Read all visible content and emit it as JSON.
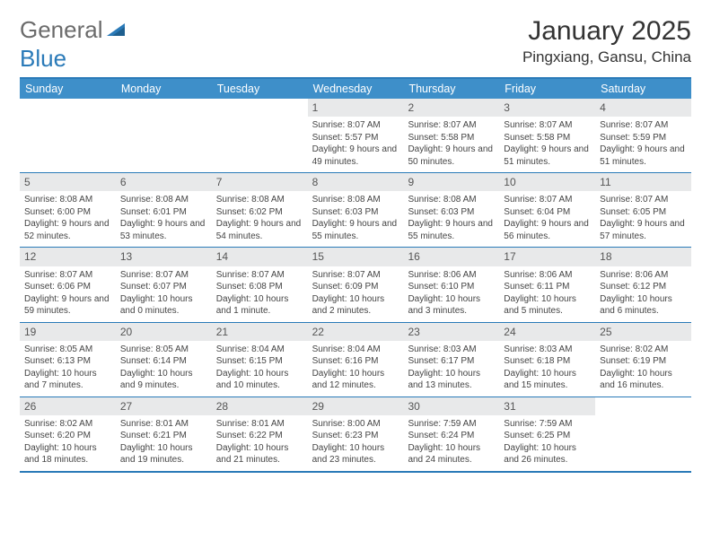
{
  "logo": {
    "text1": "General",
    "text2": "Blue"
  },
  "title": "January 2025",
  "location": "Pingxiang, Gansu, China",
  "colors": {
    "header_bg": "#3e8fc9",
    "border": "#2a7ab8",
    "daynum_bg": "#e8e9ea",
    "text": "#333333",
    "logo_gray": "#6b6b6b",
    "logo_blue": "#2a7ab8"
  },
  "dow": [
    "Sunday",
    "Monday",
    "Tuesday",
    "Wednesday",
    "Thursday",
    "Friday",
    "Saturday"
  ],
  "weeks": [
    [
      {
        "n": "",
        "sr": "",
        "ss": "",
        "dl": ""
      },
      {
        "n": "",
        "sr": "",
        "ss": "",
        "dl": ""
      },
      {
        "n": "",
        "sr": "",
        "ss": "",
        "dl": ""
      },
      {
        "n": "1",
        "sr": "Sunrise: 8:07 AM",
        "ss": "Sunset: 5:57 PM",
        "dl": "Daylight: 9 hours and 49 minutes."
      },
      {
        "n": "2",
        "sr": "Sunrise: 8:07 AM",
        "ss": "Sunset: 5:58 PM",
        "dl": "Daylight: 9 hours and 50 minutes."
      },
      {
        "n": "3",
        "sr": "Sunrise: 8:07 AM",
        "ss": "Sunset: 5:58 PM",
        "dl": "Daylight: 9 hours and 51 minutes."
      },
      {
        "n": "4",
        "sr": "Sunrise: 8:07 AM",
        "ss": "Sunset: 5:59 PM",
        "dl": "Daylight: 9 hours and 51 minutes."
      }
    ],
    [
      {
        "n": "5",
        "sr": "Sunrise: 8:08 AM",
        "ss": "Sunset: 6:00 PM",
        "dl": "Daylight: 9 hours and 52 minutes."
      },
      {
        "n": "6",
        "sr": "Sunrise: 8:08 AM",
        "ss": "Sunset: 6:01 PM",
        "dl": "Daylight: 9 hours and 53 minutes."
      },
      {
        "n": "7",
        "sr": "Sunrise: 8:08 AM",
        "ss": "Sunset: 6:02 PM",
        "dl": "Daylight: 9 hours and 54 minutes."
      },
      {
        "n": "8",
        "sr": "Sunrise: 8:08 AM",
        "ss": "Sunset: 6:03 PM",
        "dl": "Daylight: 9 hours and 55 minutes."
      },
      {
        "n": "9",
        "sr": "Sunrise: 8:08 AM",
        "ss": "Sunset: 6:03 PM",
        "dl": "Daylight: 9 hours and 55 minutes."
      },
      {
        "n": "10",
        "sr": "Sunrise: 8:07 AM",
        "ss": "Sunset: 6:04 PM",
        "dl": "Daylight: 9 hours and 56 minutes."
      },
      {
        "n": "11",
        "sr": "Sunrise: 8:07 AM",
        "ss": "Sunset: 6:05 PM",
        "dl": "Daylight: 9 hours and 57 minutes."
      }
    ],
    [
      {
        "n": "12",
        "sr": "Sunrise: 8:07 AM",
        "ss": "Sunset: 6:06 PM",
        "dl": "Daylight: 9 hours and 59 minutes."
      },
      {
        "n": "13",
        "sr": "Sunrise: 8:07 AM",
        "ss": "Sunset: 6:07 PM",
        "dl": "Daylight: 10 hours and 0 minutes."
      },
      {
        "n": "14",
        "sr": "Sunrise: 8:07 AM",
        "ss": "Sunset: 6:08 PM",
        "dl": "Daylight: 10 hours and 1 minute."
      },
      {
        "n": "15",
        "sr": "Sunrise: 8:07 AM",
        "ss": "Sunset: 6:09 PM",
        "dl": "Daylight: 10 hours and 2 minutes."
      },
      {
        "n": "16",
        "sr": "Sunrise: 8:06 AM",
        "ss": "Sunset: 6:10 PM",
        "dl": "Daylight: 10 hours and 3 minutes."
      },
      {
        "n": "17",
        "sr": "Sunrise: 8:06 AM",
        "ss": "Sunset: 6:11 PM",
        "dl": "Daylight: 10 hours and 5 minutes."
      },
      {
        "n": "18",
        "sr": "Sunrise: 8:06 AM",
        "ss": "Sunset: 6:12 PM",
        "dl": "Daylight: 10 hours and 6 minutes."
      }
    ],
    [
      {
        "n": "19",
        "sr": "Sunrise: 8:05 AM",
        "ss": "Sunset: 6:13 PM",
        "dl": "Daylight: 10 hours and 7 minutes."
      },
      {
        "n": "20",
        "sr": "Sunrise: 8:05 AM",
        "ss": "Sunset: 6:14 PM",
        "dl": "Daylight: 10 hours and 9 minutes."
      },
      {
        "n": "21",
        "sr": "Sunrise: 8:04 AM",
        "ss": "Sunset: 6:15 PM",
        "dl": "Daylight: 10 hours and 10 minutes."
      },
      {
        "n": "22",
        "sr": "Sunrise: 8:04 AM",
        "ss": "Sunset: 6:16 PM",
        "dl": "Daylight: 10 hours and 12 minutes."
      },
      {
        "n": "23",
        "sr": "Sunrise: 8:03 AM",
        "ss": "Sunset: 6:17 PM",
        "dl": "Daylight: 10 hours and 13 minutes."
      },
      {
        "n": "24",
        "sr": "Sunrise: 8:03 AM",
        "ss": "Sunset: 6:18 PM",
        "dl": "Daylight: 10 hours and 15 minutes."
      },
      {
        "n": "25",
        "sr": "Sunrise: 8:02 AM",
        "ss": "Sunset: 6:19 PM",
        "dl": "Daylight: 10 hours and 16 minutes."
      }
    ],
    [
      {
        "n": "26",
        "sr": "Sunrise: 8:02 AM",
        "ss": "Sunset: 6:20 PM",
        "dl": "Daylight: 10 hours and 18 minutes."
      },
      {
        "n": "27",
        "sr": "Sunrise: 8:01 AM",
        "ss": "Sunset: 6:21 PM",
        "dl": "Daylight: 10 hours and 19 minutes."
      },
      {
        "n": "28",
        "sr": "Sunrise: 8:01 AM",
        "ss": "Sunset: 6:22 PM",
        "dl": "Daylight: 10 hours and 21 minutes."
      },
      {
        "n": "29",
        "sr": "Sunrise: 8:00 AM",
        "ss": "Sunset: 6:23 PM",
        "dl": "Daylight: 10 hours and 23 minutes."
      },
      {
        "n": "30",
        "sr": "Sunrise: 7:59 AM",
        "ss": "Sunset: 6:24 PM",
        "dl": "Daylight: 10 hours and 24 minutes."
      },
      {
        "n": "31",
        "sr": "Sunrise: 7:59 AM",
        "ss": "Sunset: 6:25 PM",
        "dl": "Daylight: 10 hours and 26 minutes."
      },
      {
        "n": "",
        "sr": "",
        "ss": "",
        "dl": ""
      }
    ]
  ]
}
